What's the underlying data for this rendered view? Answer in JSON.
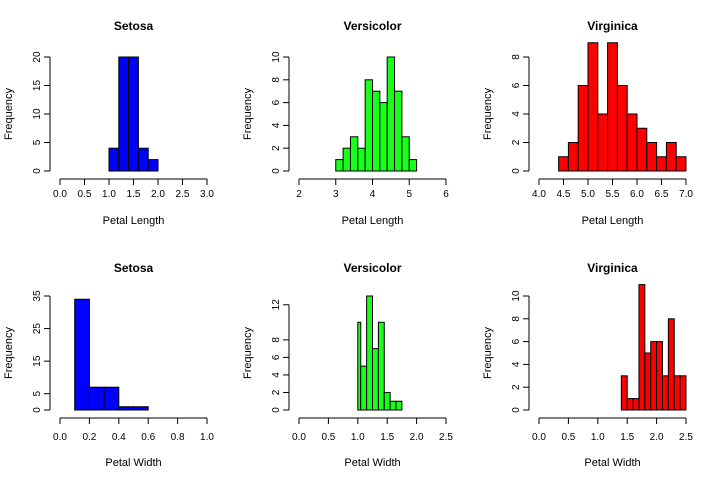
{
  "chart_data": [
    {
      "type": "bar",
      "title": "Setosa",
      "xlabel": "Petal Length",
      "ylabel": "Frequency",
      "color": "#0000ff",
      "xlim": [
        0,
        3.0
      ],
      "ylim": [
        0,
        20
      ],
      "xticks": [
        0.0,
        0.5,
        1.0,
        1.5,
        2.0,
        2.5,
        3.0
      ],
      "xtick_labels": [
        "0.0",
        "0.5",
        "1.0",
        "1.5",
        "2.0",
        "2.5",
        "3.0"
      ],
      "yticks": [
        0,
        5,
        10,
        15,
        20
      ],
      "ytick_labels": [
        "0",
        "5",
        "10",
        "15",
        "20"
      ],
      "bins": [
        [
          1.0,
          1.2,
          4
        ],
        [
          1.2,
          1.4,
          20
        ],
        [
          1.4,
          1.6,
          20
        ],
        [
          1.6,
          1.8,
          4
        ],
        [
          1.8,
          2.0,
          2
        ]
      ]
    },
    {
      "type": "bar",
      "title": "Versicolor",
      "xlabel": "Petal Length",
      "ylabel": "Frequency",
      "color": "#1aff1a",
      "xlim": [
        2,
        6
      ],
      "ylim": [
        0,
        10
      ],
      "xticks": [
        2,
        3,
        4,
        5,
        6
      ],
      "xtick_labels": [
        "2",
        "3",
        "4",
        "5",
        "6"
      ],
      "yticks": [
        0,
        2,
        4,
        6,
        8,
        10
      ],
      "ytick_labels": [
        "0",
        "2",
        "4",
        "6",
        "8",
        "10"
      ],
      "bins": [
        [
          3.0,
          3.2,
          1
        ],
        [
          3.2,
          3.4,
          2
        ],
        [
          3.4,
          3.6,
          3
        ],
        [
          3.6,
          3.8,
          2
        ],
        [
          3.8,
          4.0,
          8
        ],
        [
          4.0,
          4.2,
          7
        ],
        [
          4.2,
          4.4,
          6
        ],
        [
          4.4,
          4.6,
          10
        ],
        [
          4.6,
          4.8,
          7
        ],
        [
          4.8,
          5.0,
          3
        ],
        [
          5.0,
          5.2,
          1
        ]
      ]
    },
    {
      "type": "bar",
      "title": "Virginica",
      "xlabel": "Petal Length",
      "ylabel": "Frequency",
      "color": "#ff0000",
      "xlim": [
        4.0,
        7.0
      ],
      "ylim": [
        0,
        8
      ],
      "xticks": [
        4.0,
        4.5,
        5.0,
        5.5,
        6.0,
        6.5,
        7.0
      ],
      "xtick_labels": [
        "4.0",
        "4.5",
        "5.0",
        "5.5",
        "6.0",
        "6.5",
        "7.0"
      ],
      "yticks": [
        0,
        2,
        4,
        6,
        8
      ],
      "ytick_labels": [
        "0",
        "2",
        "4",
        "6",
        "8"
      ],
      "bins": [
        [
          4.4,
          4.6,
          1
        ],
        [
          4.6,
          4.8,
          2
        ],
        [
          4.8,
          5.0,
          6
        ],
        [
          5.0,
          5.2,
          9
        ],
        [
          5.2,
          5.4,
          4
        ],
        [
          5.4,
          5.6,
          9
        ],
        [
          5.6,
          5.8,
          6
        ],
        [
          5.8,
          6.0,
          4
        ],
        [
          6.0,
          6.2,
          3
        ],
        [
          6.2,
          6.4,
          2
        ],
        [
          6.4,
          6.6,
          1
        ],
        [
          6.6,
          6.8,
          2
        ],
        [
          6.8,
          7.0,
          1
        ]
      ]
    },
    {
      "type": "bar",
      "title": "Setosa",
      "xlabel": "Petal Width",
      "ylabel": "Frequency",
      "color": "#0000ff",
      "xlim": [
        0.0,
        1.0
      ],
      "ylim": [
        0,
        35
      ],
      "xticks": [
        0.0,
        0.2,
        0.4,
        0.6,
        0.8,
        1.0
      ],
      "xtick_labels": [
        "0.0",
        "0.2",
        "0.4",
        "0.6",
        "0.8",
        "1.0"
      ],
      "yticks": [
        0,
        5,
        15,
        25,
        35
      ],
      "ytick_labels": [
        "0",
        "5",
        "15",
        "25",
        "35"
      ],
      "bins": [
        [
          0.1,
          0.2,
          34
        ],
        [
          0.2,
          0.3,
          7
        ],
        [
          0.3,
          0.4,
          7
        ],
        [
          0.4,
          0.5,
          1
        ],
        [
          0.5,
          0.6,
          1
        ]
      ]
    },
    {
      "type": "bar",
      "title": "Versicolor",
      "xlabel": "Petal Width",
      "ylabel": "Frequency",
      "color": "#1aff1a",
      "xlim": [
        0.0,
        2.5
      ],
      "ylim": [
        0,
        13
      ],
      "xticks": [
        0.0,
        0.5,
        1.0,
        1.5,
        2.0,
        2.5
      ],
      "xtick_labels": [
        "0.0",
        "0.5",
        "1.0",
        "1.5",
        "2.0",
        "2.5"
      ],
      "yticks": [
        0,
        2,
        4,
        6,
        8,
        12
      ],
      "ytick_labels": [
        "0",
        "2",
        "4",
        "6",
        "8",
        "12"
      ],
      "bins": [
        [
          1.0,
          1.05,
          10
        ],
        [
          1.05,
          1.15,
          5
        ],
        [
          1.15,
          1.25,
          13
        ],
        [
          1.25,
          1.35,
          7
        ],
        [
          1.35,
          1.45,
          10
        ],
        [
          1.45,
          1.55,
          2
        ],
        [
          1.55,
          1.65,
          1
        ],
        [
          1.65,
          1.75,
          1
        ]
      ]
    },
    {
      "type": "bar",
      "title": "Virginica",
      "xlabel": "Petal Width",
      "ylabel": "Frequency",
      "color": "#ff0000",
      "xlim": [
        0.0,
        2.5
      ],
      "ylim": [
        0,
        10
      ],
      "xticks": [
        0.0,
        0.5,
        1.0,
        1.5,
        2.0,
        2.5
      ],
      "xtick_labels": [
        "0.0",
        "0.5",
        "1.0",
        "1.5",
        "2.0",
        "2.5"
      ],
      "yticks": [
        0,
        2,
        4,
        6,
        8,
        10
      ],
      "ytick_labels": [
        "0",
        "2",
        "4",
        "6",
        "8",
        "10"
      ],
      "bins": [
        [
          1.4,
          1.5,
          3
        ],
        [
          1.5,
          1.6,
          1
        ],
        [
          1.6,
          1.7,
          1
        ],
        [
          1.7,
          1.8,
          11
        ],
        [
          1.8,
          1.9,
          5
        ],
        [
          1.9,
          2.0,
          6
        ],
        [
          2.0,
          2.1,
          6
        ],
        [
          2.1,
          2.2,
          3
        ],
        [
          2.2,
          2.3,
          8
        ],
        [
          2.3,
          2.4,
          3
        ],
        [
          2.4,
          2.5,
          3
        ]
      ]
    }
  ]
}
